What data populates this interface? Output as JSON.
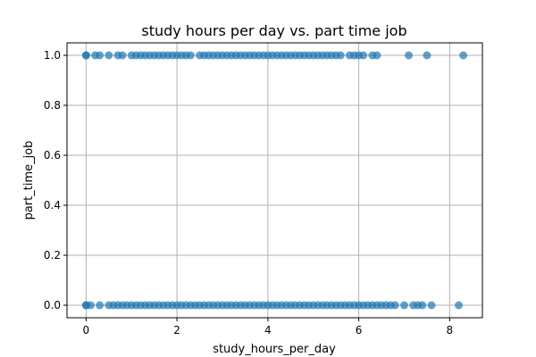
{
  "chart_data": {
    "type": "scatter",
    "title": "study hours per day vs. part time job",
    "xlabel": "study_hours_per_day",
    "ylabel": "part_time_job",
    "xlim": [
      -0.42,
      8.72
    ],
    "ylim": [
      -0.05,
      1.05
    ],
    "xticks": [
      0,
      2,
      4,
      6,
      8
    ],
    "yticks": [
      0.0,
      0.2,
      0.4,
      0.6,
      0.8,
      1.0
    ],
    "xtick_labels": [
      "0",
      "2",
      "4",
      "6",
      "8"
    ],
    "ytick_labels": [
      "0.0",
      "0.2",
      "0.4",
      "0.6",
      "0.8",
      "1.0"
    ],
    "grid": true,
    "color": "#1f77b4",
    "alpha": 0.7,
    "series": [
      {
        "x": [
          0.0,
          0.0,
          0.2,
          0.3,
          0.5,
          0.7,
          0.8,
          1.0,
          1.1,
          1.2,
          1.3,
          1.4,
          1.5,
          1.6,
          1.7,
          1.8,
          1.9,
          2.0,
          2.1,
          2.2,
          2.3,
          2.5,
          2.6,
          2.7,
          2.8,
          2.9,
          3.0,
          3.1,
          3.2,
          3.3,
          3.4,
          3.5,
          3.6,
          3.7,
          3.8,
          3.9,
          4.0,
          4.1,
          4.2,
          4.3,
          4.4,
          4.5,
          4.6,
          4.7,
          4.8,
          4.9,
          5.0,
          5.1,
          5.2,
          5.3,
          5.4,
          5.5,
          5.6,
          5.8,
          5.9,
          6.0,
          6.1,
          6.3,
          6.4,
          7.1,
          7.5,
          8.3
        ],
        "y": [
          1,
          1,
          1,
          1,
          1,
          1,
          1,
          1,
          1,
          1,
          1,
          1,
          1,
          1,
          1,
          1,
          1,
          1,
          1,
          1,
          1,
          1,
          1,
          1,
          1,
          1,
          1,
          1,
          1,
          1,
          1,
          1,
          1,
          1,
          1,
          1,
          1,
          1,
          1,
          1,
          1,
          1,
          1,
          1,
          1,
          1,
          1,
          1,
          1,
          1,
          1,
          1,
          1,
          1,
          1,
          1,
          1,
          1,
          1,
          1,
          1,
          1
        ]
      },
      {
        "x": [
          0.0,
          0.0,
          0.1,
          0.3,
          0.5,
          0.6,
          0.7,
          0.8,
          0.9,
          1.0,
          1.1,
          1.2,
          1.3,
          1.4,
          1.5,
          1.6,
          1.7,
          1.8,
          1.9,
          2.0,
          2.1,
          2.2,
          2.3,
          2.4,
          2.5,
          2.6,
          2.7,
          2.8,
          2.9,
          3.0,
          3.1,
          3.2,
          3.3,
          3.4,
          3.5,
          3.6,
          3.7,
          3.8,
          3.9,
          4.0,
          4.1,
          4.2,
          4.3,
          4.4,
          4.5,
          4.6,
          4.7,
          4.8,
          4.9,
          5.0,
          5.1,
          5.2,
          5.3,
          5.4,
          5.5,
          5.6,
          5.7,
          5.8,
          5.9,
          6.0,
          6.1,
          6.2,
          6.3,
          6.4,
          6.5,
          6.6,
          6.7,
          6.8,
          7.0,
          7.2,
          7.3,
          7.4,
          7.6,
          8.2
        ],
        "y": [
          0,
          0,
          0,
          0,
          0,
          0,
          0,
          0,
          0,
          0,
          0,
          0,
          0,
          0,
          0,
          0,
          0,
          0,
          0,
          0,
          0,
          0,
          0,
          0,
          0,
          0,
          0,
          0,
          0,
          0,
          0,
          0,
          0,
          0,
          0,
          0,
          0,
          0,
          0,
          0,
          0,
          0,
          0,
          0,
          0,
          0,
          0,
          0,
          0,
          0,
          0,
          0,
          0,
          0,
          0,
          0,
          0,
          0,
          0,
          0,
          0,
          0,
          0,
          0,
          0,
          0,
          0,
          0,
          0,
          0,
          0,
          0,
          0,
          0
        ]
      }
    ]
  }
}
